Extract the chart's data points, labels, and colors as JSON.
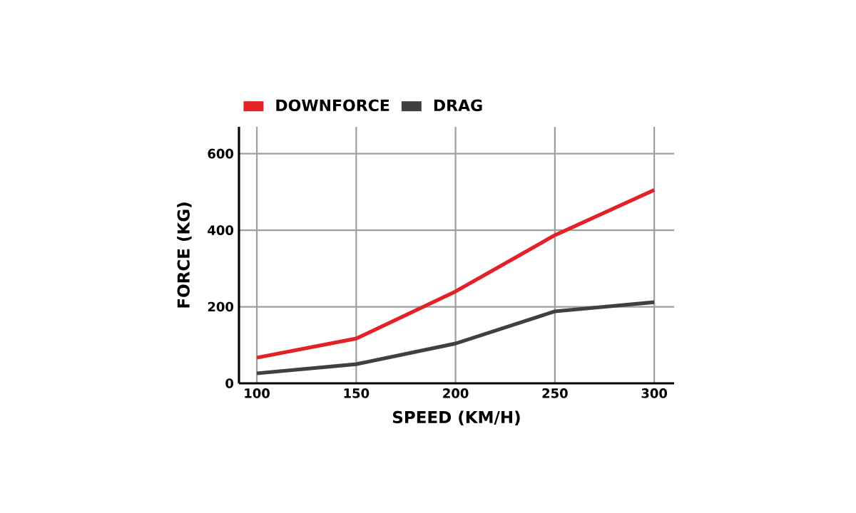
{
  "chart_data": {
    "type": "line",
    "xlabel": "SPEED (KM/H)",
    "ylabel": "FORCE (KG)",
    "x": [
      100,
      150,
      200,
      250,
      300
    ],
    "series": [
      {
        "name": "DOWNFORCE",
        "color": "#e32227",
        "values": [
          67,
          117,
          240,
          387,
          505
        ]
      },
      {
        "name": "DRAG",
        "color": "#404040",
        "values": [
          26,
          50,
          104,
          188,
          212
        ]
      }
    ],
    "xlim": [
      91,
      310
    ],
    "ylim": [
      0,
      670
    ],
    "xticks": [
      100,
      150,
      200,
      250,
      300
    ],
    "yticks": [
      0,
      200,
      400,
      600
    ],
    "grid": true,
    "legend": "top left",
    "marker": "none",
    "line_style": "solid"
  }
}
